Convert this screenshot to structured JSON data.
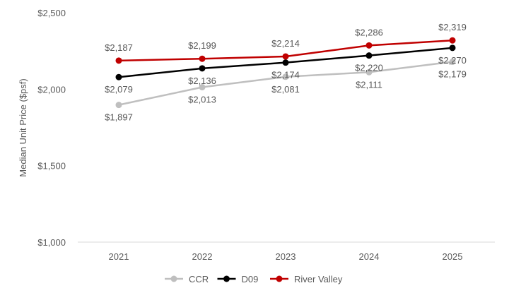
{
  "chart_data": {
    "type": "line",
    "title": "",
    "xlabel": "",
    "ylabel": "Median Unit Price ($psf)",
    "categories": [
      "2021",
      "2022",
      "2023",
      "2024",
      "2025"
    ],
    "ylim": [
      1000,
      2500
    ],
    "yticks": [
      1000,
      1500,
      2000,
      2500
    ],
    "ytick_labels": [
      "$1,000",
      "$1,500",
      "$2,000",
      "$2,500"
    ],
    "grid": false,
    "legend_position": "bottom",
    "series": [
      {
        "name": "CCR",
        "color": "#bfbfbf",
        "values": [
          1897,
          2013,
          2081,
          2111,
          2179
        ],
        "labels": [
          "$1,897",
          "$2,013",
          "$2,081",
          "$2,111",
          "$2,179"
        ],
        "label_position": "below"
      },
      {
        "name": "D09",
        "color": "#000000",
        "values": [
          2079,
          2136,
          2174,
          2220,
          2270
        ],
        "labels": [
          "$2,079",
          "$2,136",
          "$2,174",
          "$2,220",
          "$2,270"
        ],
        "label_position": "below"
      },
      {
        "name": "River Valley",
        "color": "#c00000",
        "values": [
          2187,
          2199,
          2214,
          2286,
          2319
        ],
        "labels": [
          "$2,187",
          "$2,199",
          "$2,214",
          "$2,286",
          "$2,319"
        ],
        "label_position": "above"
      }
    ]
  }
}
